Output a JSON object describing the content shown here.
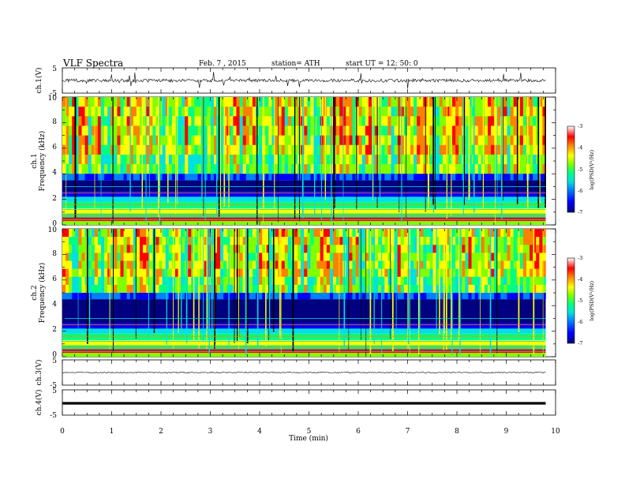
{
  "header": {
    "title": "VLF  Spectra",
    "date": "Feb. 7  , 2015",
    "station": "station= ATH",
    "start": "start  UT  =    12: 50: 0"
  },
  "colors": {
    "colormap": [
      "#000080",
      "#0000ff",
      "#0080ff",
      "#00e0e0",
      "#00ff80",
      "#80ff00",
      "#ffff00",
      "#ff8000",
      "#ff0000",
      "#ffffff"
    ],
    "trace": "#000000"
  },
  "chart_data": [
    {
      "type": "line",
      "panel": "ch1-waveform",
      "ylabel": "ch.1(V)",
      "ylim": [
        -5,
        5
      ],
      "yticks": [
        "5",
        "-5"
      ],
      "description_values": {
        "baseline_v": 0,
        "typical_peak_v": 2.5
      }
    },
    {
      "type": "heatmap",
      "panel": "ch1-spectrogram",
      "ylabel_channel": "ch.1",
      "ylabel": "Frequency  (kHz)",
      "ylim": [
        0,
        10
      ],
      "yticks": [
        "0",
        "2",
        "4",
        "6",
        "8",
        "10"
      ],
      "colorbar": {
        "label": "log(PSD(V²/Hz)",
        "range": [
          -7,
          -3
        ],
        "ticks": [
          "-3",
          "-4",
          "-5",
          "-6",
          "-7"
        ]
      },
      "bands_khz": {
        "quiet_floor_max": 3.5,
        "active_above": 4
      }
    },
    {
      "type": "heatmap",
      "panel": "ch2-spectrogram",
      "ylabel_channel": "ch.2",
      "ylabel": "Frequency  (kHz)",
      "ylim": [
        0,
        10
      ],
      "yticks": [
        "0",
        "2",
        "4",
        "6",
        "8",
        "10"
      ],
      "colorbar": {
        "label": "log(PSD(V²/Hz)",
        "range": [
          -7,
          -3
        ],
        "ticks": [
          "-3",
          "-4",
          "-5",
          "-6",
          "-7"
        ]
      },
      "bands_khz": {
        "quiet_floor_max": 4.5,
        "active_above": 5
      }
    },
    {
      "type": "line",
      "panel": "ch3-waveform",
      "ylabel": "ch.3(V)",
      "ylim": [
        -5,
        5
      ],
      "yticks": [
        "5",
        "-5"
      ]
    },
    {
      "type": "line",
      "panel": "ch4-waveform",
      "ylabel": "ch.4(V)",
      "ylim": [
        -5,
        5
      ],
      "yticks": [
        "5",
        "-5"
      ]
    }
  ],
  "x_axis": {
    "label": "Time  (min)",
    "range": [
      0,
      10
    ],
    "data_end": 9.8,
    "ticks": [
      "0",
      "1",
      "2",
      "3",
      "4",
      "5",
      "6",
      "7",
      "8",
      "9",
      "10"
    ]
  }
}
